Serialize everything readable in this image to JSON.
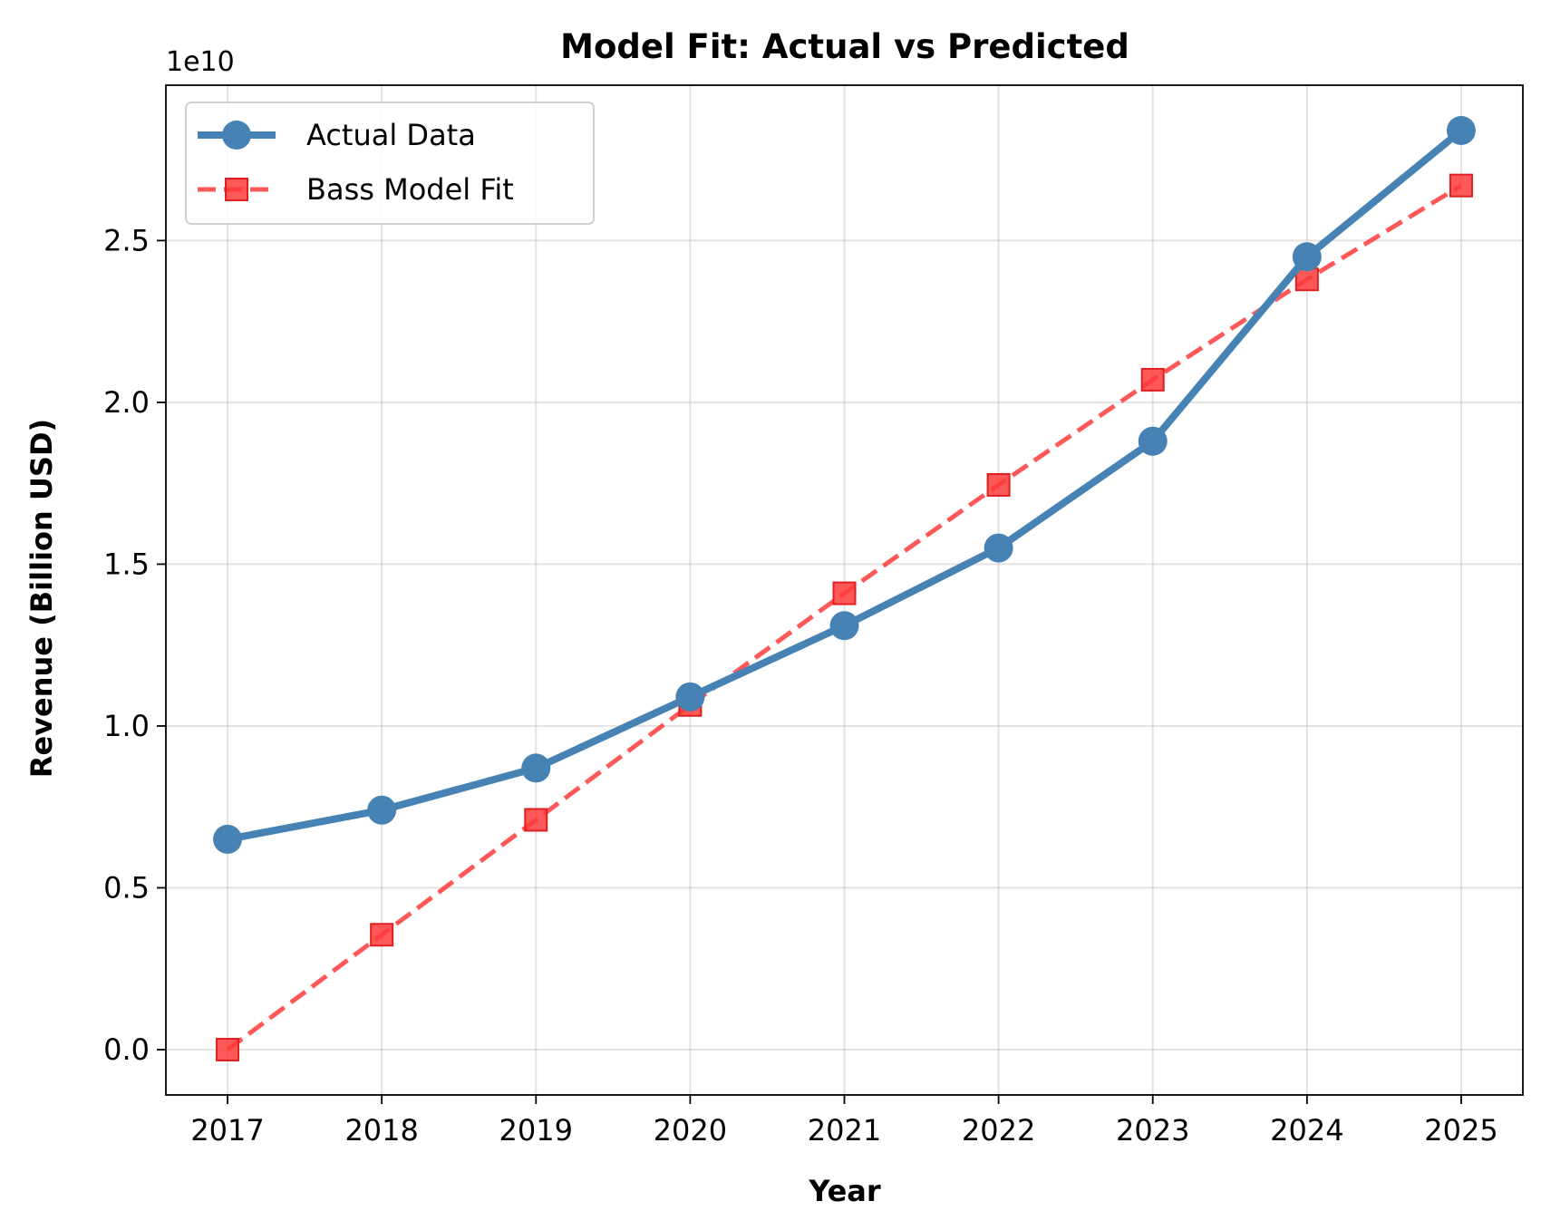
{
  "chart_data": {
    "type": "line",
    "title": "Model Fit: Actual vs Predicted",
    "xlabel": "Year",
    "ylabel": "Revenue (Billion USD)",
    "y_offset_label": "1e10",
    "x": [
      2017,
      2018,
      2019,
      2020,
      2021,
      2022,
      2023,
      2024,
      2025
    ],
    "x_tick_labels": [
      "2017",
      "2018",
      "2019",
      "2020",
      "2021",
      "2022",
      "2023",
      "2024",
      "2025"
    ],
    "y_tick_values": [
      0.0,
      0.5,
      1.0,
      1.5,
      2.0,
      2.5
    ],
    "y_tick_labels": [
      "0.0",
      "0.5",
      "1.0",
      "1.5",
      "2.0",
      "2.5"
    ],
    "xlim": [
      2016.6,
      2025.4
    ],
    "ylim": [
      -0.14,
      2.98
    ],
    "grid": true,
    "legend_position": "upper-left",
    "series": [
      {
        "name": "Actual Data",
        "color": "#4682b4",
        "line_style": "solid",
        "marker": "circle",
        "values": [
          0.65,
          0.74,
          0.87,
          1.09,
          1.31,
          1.55,
          1.88,
          2.45,
          2.84
        ]
      },
      {
        "name": "Bass Model Fit",
        "color": "#ff3b3b",
        "line_style": "dashed",
        "marker": "square",
        "values": [
          0.0,
          0.355,
          0.71,
          1.065,
          1.41,
          1.745,
          2.07,
          2.38,
          2.67
        ]
      }
    ]
  }
}
